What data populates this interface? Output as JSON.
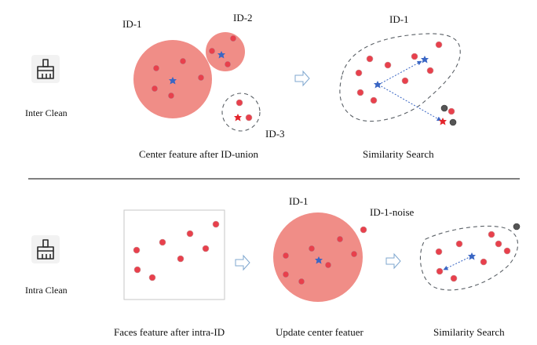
{
  "inter_clean": {
    "row_label": "Inter Clean",
    "id1_label": "ID-1",
    "id2_label": "ID-2",
    "id3_label": "ID-3",
    "panel1_caption": "Center feature after ID-union",
    "search_id_label": "ID-1",
    "panel2_caption": "Similarity Search"
  },
  "intra_clean": {
    "row_label": "Intra Clean",
    "panel1_caption": "Faces feature after intra-ID",
    "id1_label": "ID-1",
    "noise_label": "ID-1-noise",
    "panel2_caption": "Update center featuer",
    "panel3_caption": "Similarity Search"
  },
  "icons": {
    "top_icon": "broom-icon",
    "bottom_icon": "broom-icon",
    "arrow": "hollow-right-arrow-icon"
  },
  "colors": {
    "cluster_fill": "#f08d87",
    "point": "#e8404c",
    "center_blue": "#3a66c4",
    "center_red": "#e3242b",
    "noise_gray": "#555555"
  }
}
